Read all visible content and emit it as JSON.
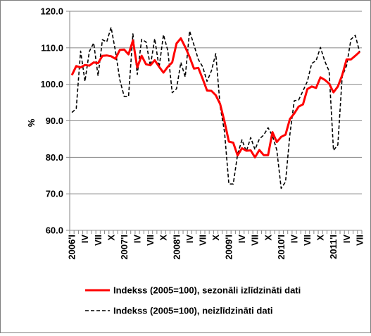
{
  "chart_data": {
    "type": "line",
    "xlabel": "",
    "ylabel": "%",
    "ylim": [
      60,
      120
    ],
    "yticks": [
      "60.0",
      "70.0",
      "80.0",
      "90.0",
      "100.0",
      "110.0",
      "120.0"
    ],
    "x": [
      "2006'I",
      "II",
      "III",
      "IV",
      "V",
      "VI",
      "VII",
      "VIII",
      "IX",
      "X",
      "XI",
      "XII",
      "2007'I",
      "II",
      "III",
      "IV",
      "V",
      "VI",
      "VII",
      "VIII",
      "IX",
      "X",
      "XI",
      "XII",
      "2008'I",
      "II",
      "III",
      "IV",
      "V",
      "VI",
      "VII",
      "VIII",
      "IX",
      "X",
      "XI",
      "XII",
      "2009'I",
      "II",
      "III",
      "IV",
      "V",
      "VI",
      "VII",
      "VIII",
      "IX",
      "X",
      "XI",
      "XII",
      "2010'I",
      "II",
      "III",
      "IV",
      "V",
      "VI",
      "VII",
      "VIII",
      "IX",
      "X",
      "XI",
      "XII",
      "2011'I",
      "II",
      "III",
      "IV",
      "V",
      "VI",
      "VII"
    ],
    "xtick_labels": [
      "2006'I",
      "IV",
      "VII",
      "X",
      "2007'I",
      "IV",
      "VII",
      "X",
      "2008'I",
      "IV",
      "VII",
      "X",
      "2009'I",
      "IV",
      "VII",
      "X",
      "2010'I",
      "IV",
      "VII",
      "X",
      "2011'I",
      "IV",
      "VII"
    ],
    "xtick_indices": [
      0,
      3,
      6,
      9,
      12,
      15,
      18,
      21,
      24,
      27,
      30,
      33,
      36,
      39,
      42,
      45,
      48,
      51,
      54,
      57,
      60,
      63,
      66
    ],
    "grid": "horizontal",
    "legend": "bottom",
    "series": [
      {
        "name": "Indekss (2005=100), sezonāli izlīdzināti dati",
        "color": "#ff0000",
        "style": "solid",
        "values": [
          102.5,
          105.0,
          104.6,
          105.3,
          105.1,
          106.0,
          105.8,
          107.8,
          107.9,
          107.7,
          107.0,
          109.4,
          109.5,
          108.2,
          112.0,
          104.6,
          107.8,
          105.5,
          105.2,
          106.6,
          104.8,
          103.2,
          104.8,
          106.0,
          111.2,
          112.6,
          110.2,
          107.5,
          104.3,
          104.5,
          101.5,
          98.3,
          98.2,
          97.0,
          94.6,
          89.8,
          84.3,
          84.0,
          80.5,
          82.5,
          81.8,
          81.9,
          80.0,
          82.0,
          80.6,
          80.6,
          86.9,
          84.2,
          85.6,
          86.2,
          90.5,
          92.0,
          93.9,
          94.5,
          98.7,
          99.4,
          99.0,
          101.9,
          101.2,
          100.2,
          97.8,
          99.4,
          102.5,
          106.8,
          106.8,
          107.8,
          108.9
        ]
      },
      {
        "name": "Indekss (2005=100), neizlīdzināti dati",
        "color": "#000000",
        "style": "dashed",
        "values": [
          92.3,
          93.3,
          109.1,
          100.8,
          109.0,
          111.3,
          102.3,
          112.2,
          111.6,
          115.6,
          109.1,
          101.2,
          96.7,
          96.7,
          113.8,
          102.7,
          112.3,
          111.6,
          105.0,
          112.5,
          104.6,
          113.6,
          109.2,
          97.7,
          98.8,
          106.0,
          102.0,
          114.6,
          110.8,
          106.8,
          104.8,
          100.8,
          103.7,
          108.4,
          94.0,
          87.0,
          72.7,
          72.7,
          80.8,
          84.8,
          81.6,
          85.4,
          82.1,
          85.0,
          86.1,
          88.1,
          85.9,
          82.0,
          71.5,
          73.3,
          86.3,
          95.5,
          95.7,
          98.2,
          100.8,
          105.7,
          106.5,
          110.1,
          106.3,
          103.6,
          81.9,
          83.4,
          102.2,
          105.1,
          112.3,
          113.4,
          108.8
        ]
      }
    ]
  }
}
